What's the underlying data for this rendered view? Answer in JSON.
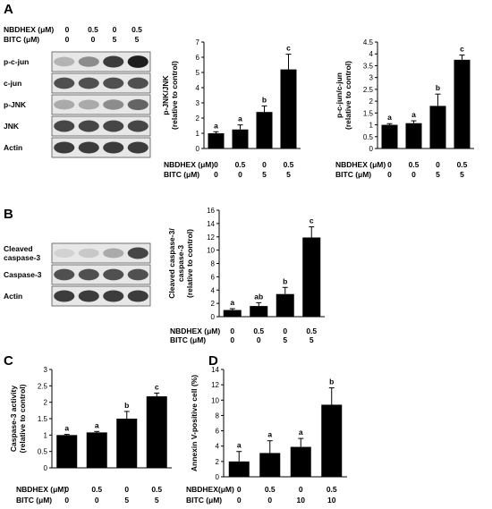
{
  "panels": {
    "A": {
      "letter": "A",
      "blot": {
        "conditions": [
          {
            "label": "NBDHEX (μM)",
            "values": [
              "0",
              "0.5",
              "0",
              "0.5"
            ]
          },
          {
            "label": "BITC (μM)",
            "values": [
              "0",
              "0",
              "5",
              "5"
            ]
          }
        ],
        "rows": [
          "p-c-jun",
          "c-jun",
          "p-JNK",
          "JNK",
          "Actin"
        ],
        "intensity": [
          [
            0.25,
            0.45,
            0.85,
            1.0
          ],
          [
            0.75,
            0.75,
            0.75,
            0.75
          ],
          [
            0.3,
            0.3,
            0.45,
            0.65
          ],
          [
            0.8,
            0.8,
            0.8,
            0.8
          ],
          [
            0.85,
            0.85,
            0.85,
            0.85
          ]
        ]
      }
    },
    "B": {
      "letter": "B",
      "blot": {
        "rows": [
          "Cleaved caspase-3",
          "Caspase-3",
          "Actin"
        ],
        "intensity": [
          [
            0.1,
            0.15,
            0.3,
            0.8
          ],
          [
            0.75,
            0.75,
            0.75,
            0.75
          ],
          [
            0.85,
            0.85,
            0.85,
            0.85
          ]
        ]
      }
    },
    "C": {
      "letter": "C"
    },
    "D": {
      "letter": "D"
    }
  },
  "chart_data": [
    {
      "id": "A1",
      "type": "bar",
      "ylabel": [
        "p-JNK/JNK",
        "(relative to control)"
      ],
      "ylim": [
        0,
        7
      ],
      "yticks": [
        0,
        1,
        2,
        3,
        4,
        5,
        6,
        7
      ],
      "values": [
        1.0,
        1.25,
        2.4,
        5.2
      ],
      "errors": [
        0.1,
        0.3,
        0.4,
        1.0
      ],
      "significance": [
        "a",
        "a",
        "b",
        "c"
      ],
      "conditions": [
        {
          "label": "NBDHEX (μM)",
          "values": [
            "0",
            "0.5",
            "0",
            "0.5"
          ]
        },
        {
          "label": "BITC (μM)",
          "values": [
            "0",
            "0",
            "5",
            "5"
          ]
        }
      ]
    },
    {
      "id": "A2",
      "type": "bar",
      "ylabel": [
        "p-c-jun/c-jun",
        "(relative to control)"
      ],
      "ylim": [
        0,
        4.5
      ],
      "yticks": [
        0,
        0.5,
        1,
        1.5,
        2,
        2.5,
        3,
        3.5,
        4,
        4.5
      ],
      "values": [
        1.0,
        1.07,
        1.8,
        3.75
      ],
      "errors": [
        0.05,
        0.1,
        0.5,
        0.2
      ],
      "significance": [
        "a",
        "a",
        "b",
        "c"
      ],
      "conditions": [
        {
          "label": "NBDHEX (μM)",
          "values": [
            "0",
            "0.5",
            "0",
            "0.5"
          ]
        },
        {
          "label": "BITC (μM)",
          "values": [
            "0",
            "0",
            "5",
            "5"
          ]
        }
      ]
    },
    {
      "id": "B1",
      "type": "bar",
      "ylabel": [
        "Cleaved caspase-3/",
        "caspase-3",
        "(relative to control)"
      ],
      "ylim": [
        0,
        16
      ],
      "yticks": [
        0,
        2,
        4,
        6,
        8,
        10,
        12,
        14,
        16
      ],
      "values": [
        1.0,
        1.6,
        3.4,
        11.9
      ],
      "errors": [
        0.2,
        0.5,
        1.0,
        1.6
      ],
      "significance": [
        "a",
        "ab",
        "b",
        "c"
      ],
      "conditions": [
        {
          "label": "NBDHEX (μM)",
          "values": [
            "0",
            "0.5",
            "0",
            "0.5"
          ]
        },
        {
          "label": "BITC (μM)",
          "values": [
            "0",
            "0",
            "5",
            "5"
          ]
        }
      ]
    },
    {
      "id": "C1",
      "type": "bar",
      "ylabel": [
        "Caspase-3 activity",
        "(relative to control)"
      ],
      "ylim": [
        0,
        3
      ],
      "yticks": [
        0,
        0.5,
        1,
        1.5,
        2,
        2.5,
        3
      ],
      "values": [
        1.0,
        1.08,
        1.5,
        2.18
      ],
      "errors": [
        0.02,
        0.03,
        0.22,
        0.1
      ],
      "significance": [
        "a",
        "a",
        "b",
        "c"
      ],
      "conditions": [
        {
          "label": "NBDHEX (μM)",
          "values": [
            "0",
            "0.5",
            "0",
            "0.5"
          ]
        },
        {
          "label": "BITC (μM)",
          "values": [
            "0",
            "0",
            "5",
            "5"
          ]
        }
      ]
    },
    {
      "id": "D1",
      "type": "bar",
      "ylabel": [
        "Annexin V-positive cell (%)"
      ],
      "ylim": [
        0,
        14
      ],
      "yticks": [
        0,
        2,
        4,
        6,
        8,
        10,
        12,
        14
      ],
      "values": [
        2.0,
        3.1,
        3.9,
        9.4
      ],
      "errors": [
        1.3,
        1.6,
        1.1,
        2.2
      ],
      "significance": [
        "a",
        "a",
        "a",
        "b"
      ],
      "conditions": [
        {
          "label": "NBDHEX(μM)",
          "values": [
            "0",
            "0.5",
            "0",
            "0.5"
          ]
        },
        {
          "label": "BITC (μM)",
          "values": [
            "0",
            "0",
            "10",
            "10"
          ]
        }
      ]
    }
  ]
}
